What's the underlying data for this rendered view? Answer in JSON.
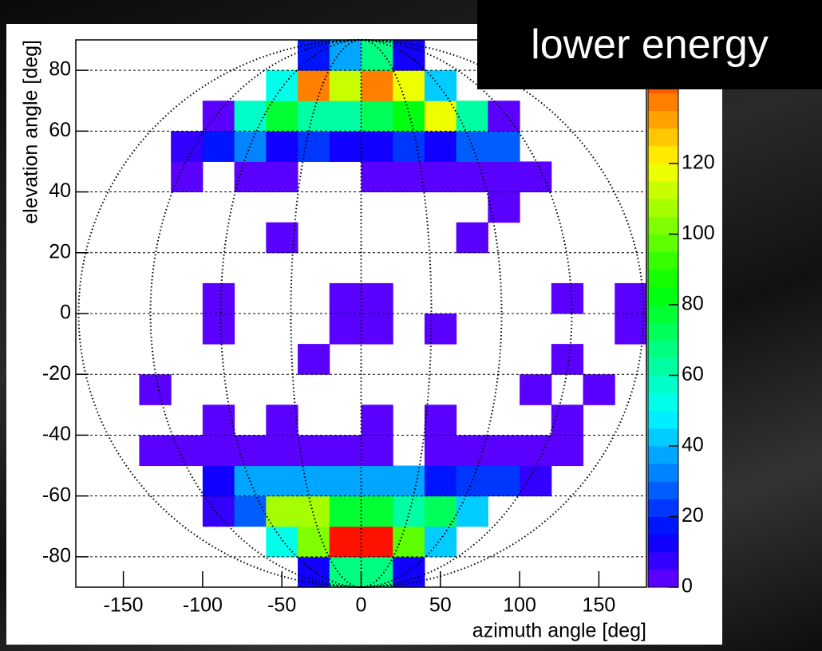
{
  "chart_data": {
    "type": "heatmap",
    "annotation": "lower energy",
    "xlabel": "azimuth angle [deg]",
    "ylabel": "elevation angle [deg]",
    "xbins": [
      -180,
      -160,
      -140,
      -120,
      -100,
      -80,
      -60,
      -40,
      -20,
      0,
      20,
      40,
      60,
      80,
      100,
      120,
      140,
      160,
      180
    ],
    "ybins": [
      -90,
      -80,
      -70,
      -60,
      -50,
      -40,
      -30,
      -20,
      -10,
      0,
      10,
      20,
      30,
      40,
      50,
      60,
      70,
      80,
      90
    ],
    "z": [
      [
        null,
        null,
        null,
        null,
        null,
        null,
        null,
        10,
        65,
        65,
        12,
        null,
        null,
        null,
        null,
        null,
        null,
        null
      ],
      [
        null,
        null,
        null,
        null,
        null,
        null,
        50,
        100,
        153,
        153,
        98,
        40,
        null,
        null,
        null,
        null,
        null,
        null
      ],
      [
        null,
        null,
        null,
        null,
        5,
        28,
        105,
        105,
        78,
        78,
        63,
        72,
        40,
        null,
        null,
        null,
        null,
        null
      ],
      [
        null,
        null,
        null,
        null,
        10,
        35,
        35,
        35,
        35,
        35,
        35,
        18,
        22,
        22,
        5,
        null,
        null,
        null
      ],
      [
        null,
        null,
        3,
        3,
        3,
        3,
        3,
        3,
        3,
        3,
        null,
        3,
        3,
        3,
        3,
        3,
        null,
        null
      ],
      [
        null,
        null,
        null,
        null,
        3,
        null,
        3,
        null,
        null,
        3,
        null,
        3,
        null,
        null,
        null,
        3,
        null,
        null
      ],
      [
        null,
        null,
        3,
        null,
        null,
        null,
        null,
        null,
        null,
        null,
        null,
        null,
        null,
        null,
        3,
        null,
        3,
        null
      ],
      [
        null,
        null,
        null,
        null,
        null,
        null,
        null,
        3,
        null,
        null,
        null,
        null,
        null,
        null,
        null,
        3,
        null,
        null
      ],
      [
        null,
        null,
        null,
        null,
        3,
        null,
        null,
        null,
        3,
        3,
        null,
        3,
        null,
        null,
        null,
        null,
        null,
        3
      ],
      [
        null,
        null,
        null,
        null,
        3,
        null,
        null,
        null,
        3,
        3,
        null,
        null,
        null,
        null,
        null,
        3,
        null,
        3
      ],
      [
        null,
        null,
        null,
        null,
        null,
        null,
        null,
        null,
        null,
        null,
        null,
        null,
        null,
        null,
        null,
        null,
        null,
        null
      ],
      [
        null,
        null,
        null,
        null,
        null,
        null,
        3,
        null,
        null,
        null,
        null,
        null,
        3,
        null,
        null,
        null,
        null,
        null
      ],
      [
        null,
        null,
        null,
        null,
        null,
        null,
        null,
        null,
        null,
        null,
        null,
        null,
        null,
        3,
        null,
        null,
        null,
        null
      ],
      [
        null,
        null,
        null,
        3,
        null,
        3,
        3,
        null,
        null,
        3,
        3,
        3,
        3,
        3,
        3,
        null,
        null,
        null
      ],
      [
        null,
        null,
        null,
        8,
        18,
        33,
        12,
        20,
        12,
        12,
        20,
        12,
        25,
        25,
        null,
        null,
        null,
        null
      ],
      [
        null,
        null,
        null,
        null,
        3,
        58,
        78,
        60,
        60,
        72,
        80,
        115,
        60,
        3,
        null,
        null,
        null,
        null
      ],
      [
        null,
        null,
        null,
        null,
        null,
        null,
        50,
        135,
        112,
        137,
        118,
        40,
        null,
        null,
        null,
        null,
        null,
        null
      ],
      [
        null,
        null,
        null,
        null,
        null,
        null,
        null,
        15,
        38,
        65,
        10,
        null,
        null,
        null,
        null,
        null,
        null,
        null
      ]
    ],
    "xlim": [
      -180,
      180
    ],
    "ylim": [
      -90,
      90
    ],
    "zlim": [
      0,
      155
    ],
    "xticks": [
      -150,
      -100,
      -50,
      0,
      50,
      100,
      150
    ],
    "yticks": [
      -80,
      -60,
      -40,
      -20,
      0,
      20,
      40,
      60,
      80
    ],
    "zticks": [
      0,
      20,
      40,
      60,
      80,
      100,
      120
    ],
    "grid": true,
    "palette": [
      "#5900ff",
      "#3300ff",
      "#1100ff",
      "#0015ff",
      "#0037ff",
      "#005eff",
      "#0084ff",
      "#00a6ff",
      "#00ccff",
      "#00eeff",
      "#00ffea",
      "#00ffc8",
      "#00ffa2",
      "#00ff80",
      "#00ff59",
      "#00ff33",
      "#00ff11",
      "#15ff00",
      "#37ff00",
      "#5eff00",
      "#80ff00",
      "#a6ff00",
      "#c8ff00",
      "#eeff00",
      "#ffea00",
      "#ffc800",
      "#ffa200",
      "#ff8000",
      "#ff5900",
      "#ff3700",
      "#ff1100"
    ]
  }
}
